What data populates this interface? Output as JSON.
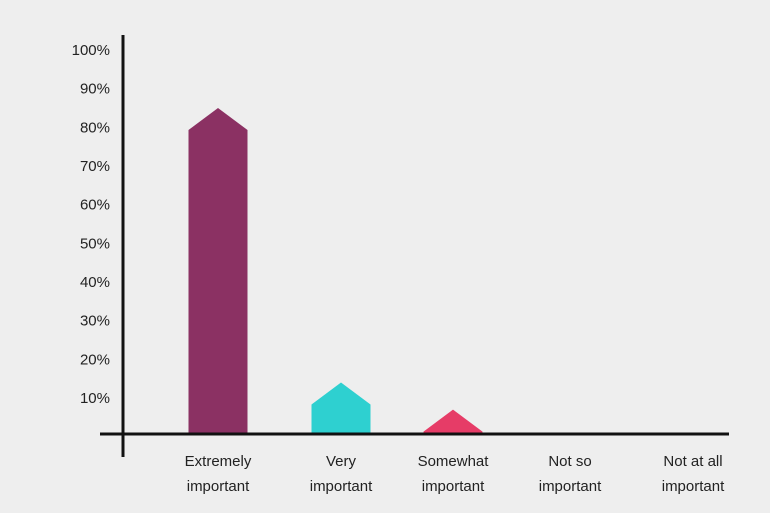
{
  "chart_data": {
    "type": "bar",
    "categories": [
      [
        "Extremely",
        "important"
      ],
      [
        "Very",
        "important"
      ],
      [
        "Somewhat",
        "important"
      ],
      [
        "Not so",
        "important"
      ],
      [
        "Not at all",
        "important"
      ]
    ],
    "values": [
      85,
      14,
      7,
      0,
      0
    ],
    "colors": [
      "#8b3163",
      "#2ed0d0",
      "#e63c67",
      "#000000",
      "#000000"
    ],
    "ylim": [
      0,
      100
    ],
    "yticks": [
      "10%",
      "20%",
      "30%",
      "40%",
      "50%",
      "60%",
      "70%",
      "80%",
      "90%",
      "100%"
    ],
    "title": "",
    "xlabel": "",
    "ylabel": "",
    "grid": false
  }
}
